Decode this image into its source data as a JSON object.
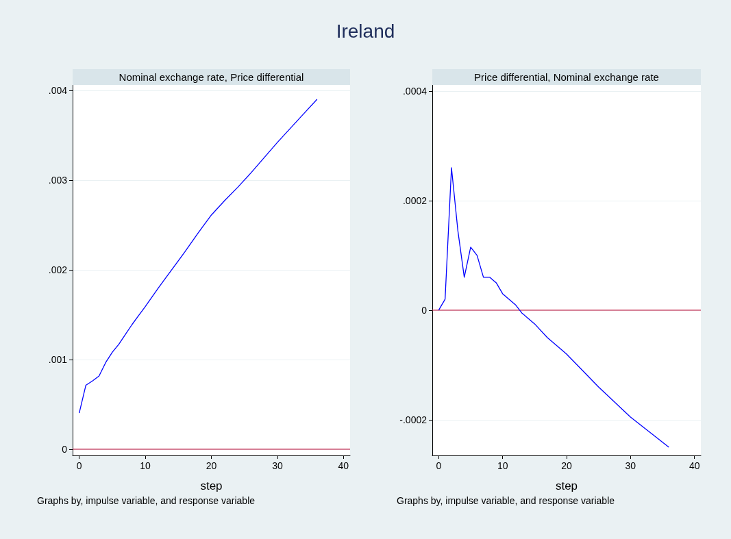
{
  "chart_data": [
    {
      "type": "line",
      "title": "Ireland",
      "subtitle": "Nominal exchange rate, Price differential",
      "xlabel": "step",
      "x": [
        0,
        1,
        2,
        3,
        4,
        5,
        6,
        7,
        8,
        9,
        10,
        12,
        14,
        16,
        18,
        20,
        22,
        24,
        26,
        28,
        30,
        32,
        34,
        36
      ],
      "series": [
        {
          "color": "#0000ff",
          "values": [
            0.000403,
            0.000712,
            0.00076,
            0.000815,
            0.000965,
            0.00108,
            0.00117,
            0.00128,
            0.00139,
            0.00149,
            0.00159,
            0.0018,
            0.002,
            0.0022,
            0.00241,
            0.00261,
            0.00277,
            0.00292,
            0.00308,
            0.00325,
            0.00342,
            0.00358,
            0.00374,
            0.0039
          ]
        }
      ],
      "xlim": [
        -1,
        41
      ],
      "xticks": [
        0,
        10,
        20,
        30,
        40
      ],
      "ylim": [
        -7e-05,
        0.00406
      ],
      "yticks": [
        0,
        {
          "value": 0.001,
          "label": ".001"
        },
        {
          "value": 0.002,
          "label": ".002"
        },
        {
          "value": 0.003,
          "label": ".003"
        },
        {
          "value": 0.004,
          "label": ".004"
        }
      ],
      "ref_lines": [
        {
          "axis": "y",
          "value": 0,
          "color": "#c4234a"
        }
      ],
      "grid": "y",
      "marker": "none",
      "line_style": "solid",
      "annotations": [
        "Graphs by, impulse variable, and response variable"
      ]
    },
    {
      "type": "line",
      "subtitle": "Price differential, Nominal exchange rate",
      "xlabel": "step",
      "x": [
        0,
        1,
        2,
        3,
        4,
        5,
        6,
        7,
        8,
        9,
        10,
        11,
        12,
        13,
        14,
        15,
        17,
        20,
        25,
        30,
        36
      ],
      "series": [
        {
          "color": "#0000ff",
          "values": [
            0,
            2e-05,
            0.00026,
            0.000145,
            6e-05,
            0.000115,
            0.0001,
            6e-05,
            6e-05,
            5e-05,
            3e-05,
            2e-05,
            1e-05,
            -5e-06,
            -1.5e-05,
            -2.5e-05,
            -5e-05,
            -8e-05,
            -0.00014,
            -0.000195,
            -0.00025
          ]
        }
      ],
      "xlim": [
        -1,
        41
      ],
      "xticks": [
        0,
        10,
        20,
        30,
        40
      ],
      "ylim": [
        -0.000265,
        0.000411
      ],
      "yticks": [
        {
          "value": -0.0002,
          "label": "-.0002"
        },
        0,
        {
          "value": 0.0002,
          "label": ".0002"
        },
        {
          "value": 0.0004,
          "label": ".0004"
        }
      ],
      "ref_lines": [
        {
          "axis": "y",
          "value": 0,
          "color": "#c4234a"
        }
      ],
      "grid": "y",
      "marker": "none",
      "line_style": "solid",
      "annotations": [
        "Graphs by, impulse variable, and response variable"
      ]
    }
  ]
}
